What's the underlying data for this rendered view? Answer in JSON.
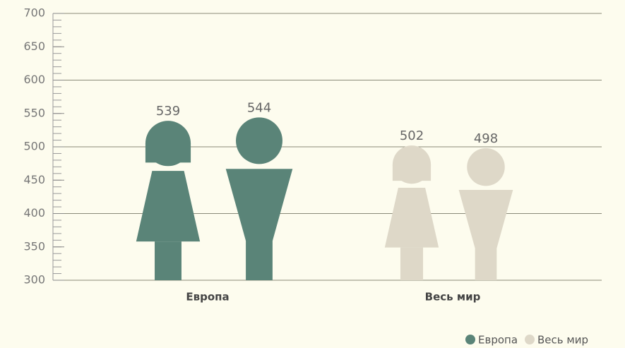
{
  "chart_data": {
    "type": "pictogram",
    "categories": [
      "Европа",
      "Весь мир"
    ],
    "series": [
      {
        "name": "Европа",
        "color": "#5a8478",
        "values": [
          539,
          544
        ]
      },
      {
        "name": "Весь мир",
        "color": "#ded8c8",
        "values": [
          502,
          498
        ]
      }
    ],
    "ylim": [
      300,
      700
    ],
    "yticks": [
      300,
      350,
      400,
      450,
      500,
      550,
      600,
      650,
      700
    ],
    "grid_yticks": [
      300,
      400,
      500,
      600,
      700
    ],
    "minor_yticks": [
      300,
      310,
      320,
      330,
      340,
      350,
      360,
      370,
      380,
      390,
      400,
      410,
      420,
      430,
      440,
      450,
      460,
      470,
      480,
      490,
      500,
      510,
      520,
      530,
      540,
      550,
      560,
      570,
      580,
      590,
      600,
      610,
      620,
      630,
      640,
      650,
      660,
      670,
      680,
      690,
      700
    ],
    "grid": true,
    "legend": "bottom-right"
  }
}
